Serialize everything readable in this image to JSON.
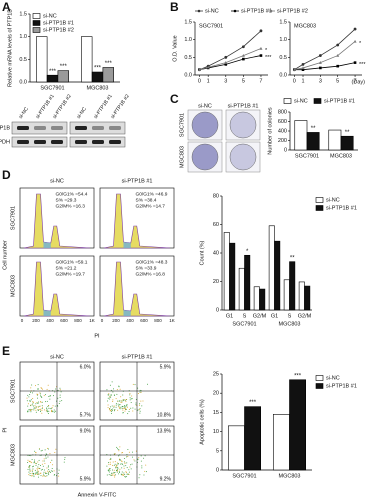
{
  "chart_data": [
    {
      "type": "bar",
      "ylabel": "Relative mRNA levels of PTP1B",
      "categories": [
        "SGC7901",
        "MGC803"
      ],
      "series": [
        {
          "name": "si-NC",
          "color": "#ffffff",
          "values": [
            1,
            1
          ],
          "significance": [
            null,
            null
          ]
        },
        {
          "name": "si-PTP1B #1",
          "color": "#111111",
          "values": [
            0.15,
            0.22
          ],
          "significance": [
            "***",
            "***"
          ]
        },
        {
          "name": "si-PTP1B #2",
          "color": "#9a9a9a",
          "values": [
            0.25,
            0.32
          ],
          "significance": [
            "***",
            "***"
          ]
        }
      ],
      "ylim": [
        0,
        1.5
      ],
      "yticks": [
        {
          "value": 0,
          "label": "0.0"
        },
        0.5,
        {
          "value": 1,
          "label": "1.0"
        },
        1.5
      ],
      "legend": "top-left"
    },
    {
      "type": "line",
      "title": "SGC7901",
      "ylabel": "O.D. Value",
      "x": [
        0,
        1,
        3,
        5,
        7
      ],
      "xlim": [
        -0.5,
        7.8
      ],
      "xticks": [
        0,
        1,
        3,
        5,
        7
      ],
      "series": [
        {
          "name": "si-NC",
          "color": "#333333",
          "values": [
            0.15,
            0.25,
            0.5,
            0.8,
            1.25
          ],
          "significance": [
            null,
            null,
            null,
            null,
            null
          ]
        },
        {
          "name": "si-PTP1B #1",
          "color": "#000000",
          "values": [
            0.15,
            0.2,
            0.3,
            0.45,
            0.55
          ],
          "significance": [
            null,
            null,
            null,
            null,
            "***"
          ]
        },
        {
          "name": "si-PTP1B #2",
          "color": "#777777",
          "values": [
            0.15,
            0.22,
            0.35,
            0.55,
            0.75
          ],
          "significance": [
            null,
            null,
            null,
            null,
            "*"
          ]
        }
      ],
      "ylim": [
        0,
        1.5
      ],
      "yticks": [
        {
          "value": 0,
          "label": "0.0"
        },
        0.5,
        {
          "value": 1,
          "label": "1.0"
        },
        1.5
      ],
      "legend": "above"
    },
    {
      "type": "line",
      "title": "MGC803",
      "xlabel": "(Day)",
      "x": [
        0,
        1,
        3,
        5,
        7
      ],
      "xlim": [
        -0.5,
        7.8
      ],
      "xticks": [
        0,
        1,
        3,
        5,
        7
      ],
      "series": [
        {
          "color": "#333333",
          "values": [
            0.15,
            0.3,
            0.55,
            0.85,
            1.3
          ],
          "significance": [
            null,
            null,
            null,
            null,
            null
          ]
        },
        {
          "color": "#000000",
          "values": [
            0.15,
            0.15,
            0.2,
            0.25,
            0.35
          ],
          "significance": [
            null,
            null,
            null,
            null,
            "***"
          ]
        },
        {
          "color": "#777777",
          "values": [
            0.15,
            0.2,
            0.35,
            0.55,
            0.95
          ],
          "significance": [
            null,
            null,
            null,
            null,
            "*"
          ]
        }
      ],
      "ylim": [
        0,
        1.5
      ],
      "yticks": [
        {
          "value": 0,
          "label": "0.0"
        },
        0.5,
        {
          "value": 1,
          "label": "1.0"
        },
        1.5
      ]
    },
    {
      "type": "bar",
      "ylabel": "Number of colonies",
      "categories": [
        "SGC7901",
        "MGC803"
      ],
      "series": [
        {
          "name": "si-NC",
          "color": "#ffffff",
          "values": [
            620,
            420
          ],
          "significance": [
            null,
            null
          ]
        },
        {
          "name": "si-PTP1B #1",
          "color": "#111111",
          "values": [
            370,
            290
          ],
          "significance": [
            "**",
            "**"
          ]
        }
      ],
      "ylim": [
        0,
        800
      ],
      "yticks": [
        0,
        200,
        400,
        600,
        800
      ],
      "legend": "above"
    },
    {
      "type": "bar",
      "ylabel": "Count (%)",
      "categories": [
        "G1",
        "S",
        "G2/M",
        "G1",
        "S",
        "G2/M"
      ],
      "groups": [
        "SGC7901",
        "MGC803"
      ],
      "series": [
        {
          "name": "si-NC",
          "color": "#ffffff",
          "values": [
            54.4,
            29.3,
            16.3,
            59.1,
            21.2,
            19.7
          ],
          "significance": [
            null,
            null,
            null,
            null,
            null,
            null
          ]
        },
        {
          "name": "si-PTP1B #1",
          "color": "#111111",
          "values": [
            46.9,
            38.4,
            14.7,
            48.3,
            33.9,
            16.8
          ],
          "significance": [
            null,
            "*",
            null,
            null,
            "**",
            null
          ]
        }
      ],
      "ylim": [
        0,
        80
      ],
      "yticks": [
        0,
        20,
        40,
        60,
        80
      ],
      "legend": "right"
    },
    {
      "type": "bar",
      "ylabel": "Apoptotic cells (%)",
      "categories": [
        "SGC7901",
        "MGC803"
      ],
      "series": [
        {
          "name": "si-NC",
          "color": "#ffffff",
          "values": [
            11.5,
            14.5
          ],
          "significance": [
            null,
            null
          ]
        },
        {
          "name": "si-PTP1B #1",
          "color": "#111111",
          "values": [
            16.5,
            23.5
          ],
          "significance": [
            "***",
            "***"
          ]
        }
      ],
      "ylim": [
        0,
        25
      ],
      "yticks": [
        0,
        5,
        10,
        15,
        20,
        25
      ],
      "legend": "right"
    }
  ],
  "panels": {
    "letters": [
      "A",
      "B",
      "C",
      "D",
      "E"
    ],
    "blot": {
      "lanes": [
        "si-NC",
        "si-PTP1B #1",
        "si-PTP1B #2"
      ],
      "rows": [
        "PTP1B",
        "GAPDH"
      ]
    },
    "colony": {
      "cols": [
        "si-NC",
        "si-PTP1B #1"
      ],
      "rows": [
        "SGC7901",
        "MGC803"
      ]
    },
    "cycle": {
      "cols": [
        "si-NC",
        "si-PTP1B #1"
      ],
      "rows": [
        "SGC7901",
        "MGC803"
      ],
      "ylabel": "Cell number",
      "xlabel": "PI",
      "xticks": [
        "0",
        "200",
        "400",
        "600",
        "800",
        "1K"
      ],
      "stats": [
        [
          "G0/G1% =54.4",
          "S% =29.3",
          "G2/M% =16.3"
        ],
        [
          "G0/G1% =46.9",
          "S% =38.4",
          "G2/M% =14.7"
        ],
        [
          "G0/G1% =59.1",
          "S% =21.2",
          "G2/M% =19.7"
        ],
        [
          "G0/G1% =48.3",
          "S% =33.9",
          "G2/M% =16.8"
        ]
      ]
    },
    "apoptosis": {
      "cols": [
        "si-NC",
        "si-PTP1B #1"
      ],
      "rows": [
        "SGC7901",
        "MGC803"
      ],
      "ylabel": "PI",
      "xlabel": "Annexin V-FITC",
      "quadrants": [
        [
          "6.0%",
          "5.7%"
        ],
        [
          "5.9%",
          "10.8%"
        ],
        [
          "9.0%",
          "5.9%"
        ],
        [
          "13.9%",
          "9.2%"
        ]
      ]
    }
  }
}
